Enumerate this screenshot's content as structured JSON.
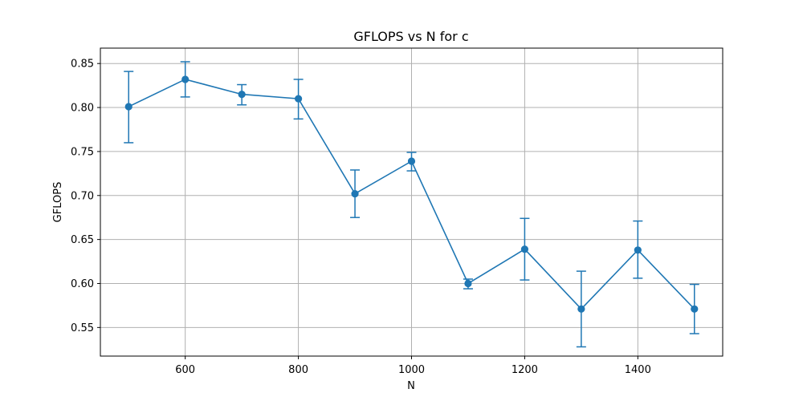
{
  "chart_data": {
    "type": "line",
    "title": "GFLOPS vs N for c",
    "xlabel": "N",
    "ylabel": "GFLOPS",
    "xlim": [
      450,
      1550
    ],
    "ylim": [
      0.5175,
      0.8675
    ],
    "grid": true,
    "colors": {
      "series": "#1f77b4",
      "grid": "#b0b0b0",
      "axis": "#000000"
    },
    "x_ticks": [
      600,
      800,
      1000,
      1200,
      1400
    ],
    "x_tick_labels": [
      "600",
      "800",
      "1000",
      "1200",
      "1400"
    ],
    "y_ticks": [
      0.55,
      0.6,
      0.65,
      0.7,
      0.75,
      0.8,
      0.85
    ],
    "y_tick_labels": [
      "0.55",
      "0.60",
      "0.65",
      "0.70",
      "0.75",
      "0.80",
      "0.85"
    ],
    "series": [
      {
        "marker": "circle",
        "error_bars": true,
        "points": [
          {
            "x": 500,
            "y": 0.801,
            "ylow": 0.76,
            "yhigh": 0.841
          },
          {
            "x": 600,
            "y": 0.832,
            "ylow": 0.812,
            "yhigh": 0.852
          },
          {
            "x": 700,
            "y": 0.815,
            "ylow": 0.803,
            "yhigh": 0.826
          },
          {
            "x": 800,
            "y": 0.81,
            "ylow": 0.787,
            "yhigh": 0.832
          },
          {
            "x": 900,
            "y": 0.702,
            "ylow": 0.675,
            "yhigh": 0.729
          },
          {
            "x": 1000,
            "y": 0.739,
            "ylow": 0.728,
            "yhigh": 0.749
          },
          {
            "x": 1100,
            "y": 0.6,
            "ylow": 0.594,
            "yhigh": 0.605
          },
          {
            "x": 1200,
            "y": 0.639,
            "ylow": 0.604,
            "yhigh": 0.674
          },
          {
            "x": 1300,
            "y": 0.571,
            "ylow": 0.528,
            "yhigh": 0.614
          },
          {
            "x": 1400,
            "y": 0.638,
            "ylow": 0.606,
            "yhigh": 0.671
          },
          {
            "x": 1500,
            "y": 0.571,
            "ylow": 0.543,
            "yhigh": 0.599
          }
        ]
      }
    ]
  }
}
